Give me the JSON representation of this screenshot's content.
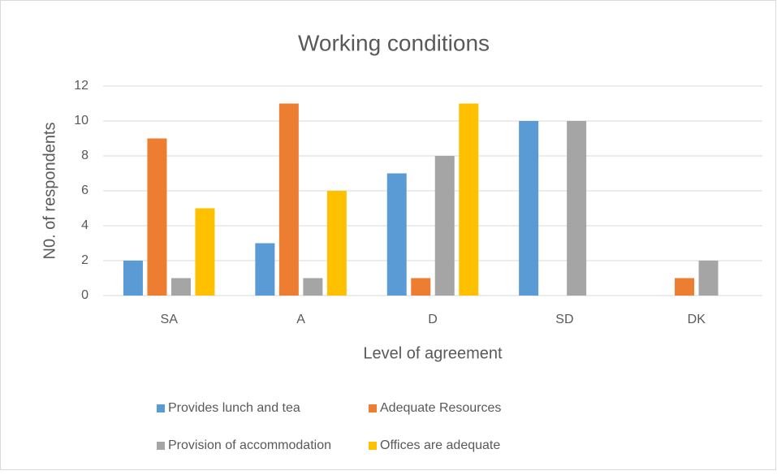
{
  "chart_data": {
    "type": "bar",
    "title": "Working conditions",
    "x_label": "Level of agreement",
    "y_label": "N0. of respondents",
    "categories": [
      "SA",
      "A",
      "D",
      "SD",
      "DK"
    ],
    "series": [
      {
        "name": "Provides lunch and tea",
        "color": "#5b9bd5",
        "values": [
          2,
          3,
          7,
          10,
          0
        ]
      },
      {
        "name": "Adequate Resources",
        "color": "#ed7d31",
        "values": [
          9,
          11,
          1,
          0,
          1
        ]
      },
      {
        "name": "Provision of accommodation",
        "color": "#a5a5a5",
        "values": [
          1,
          1,
          8,
          10,
          2
        ]
      },
      {
        "name": "Offices are adequate",
        "color": "#ffc000",
        "values": [
          5,
          6,
          11,
          0,
          0
        ]
      }
    ],
    "ylim": [
      0,
      12
    ],
    "yticks": [
      0,
      2,
      4,
      6,
      8,
      10,
      12
    ],
    "grid": true,
    "legend": "bottom"
  }
}
